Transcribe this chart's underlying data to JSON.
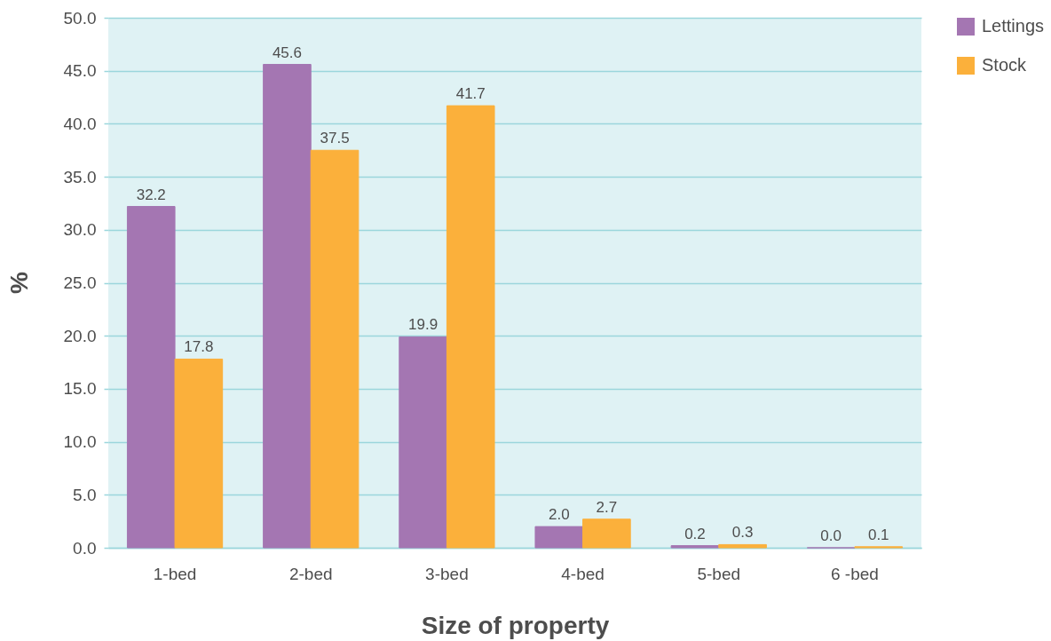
{
  "chart_data": {
    "type": "bar",
    "xlabel": "Size of property",
    "ylabel": "%",
    "categories": [
      "1-bed",
      "2-bed",
      "3-bed",
      "4-bed",
      "5-bed",
      "6 -bed"
    ],
    "series": [
      {
        "name": "Lettings",
        "color": "#a476b2",
        "values": [
          32.2,
          45.6,
          19.9,
          2.0,
          0.2,
          0.0
        ],
        "value_labels": [
          "32.2",
          "45.6",
          "19.9",
          "2.0",
          "0.2",
          "0.0"
        ]
      },
      {
        "name": "Stock",
        "color": "#fbb03b",
        "values": [
          17.8,
          37.5,
          41.7,
          2.7,
          0.3,
          0.1
        ],
        "value_labels": [
          "17.8",
          "37.5",
          "41.7",
          "2.7",
          "0.3",
          "0.1"
        ]
      }
    ],
    "ylim": [
      0,
      50
    ],
    "yticks": [
      {
        "value": 0,
        "label": "0.0"
      },
      {
        "value": 5,
        "label": "5.0"
      },
      {
        "value": 10,
        "label": "10.0"
      },
      {
        "value": 15,
        "label": "15.0"
      },
      {
        "value": 20,
        "label": "20.0"
      },
      {
        "value": 25,
        "label": "25.0"
      },
      {
        "value": 30,
        "label": "30.0"
      },
      {
        "value": 35,
        "label": "35.0"
      },
      {
        "value": 40,
        "label": "40.0"
      },
      {
        "value": 45,
        "label": "45.0"
      },
      {
        "value": 50,
        "label": "50.0"
      }
    ],
    "grid": "y",
    "legend": "top right"
  }
}
